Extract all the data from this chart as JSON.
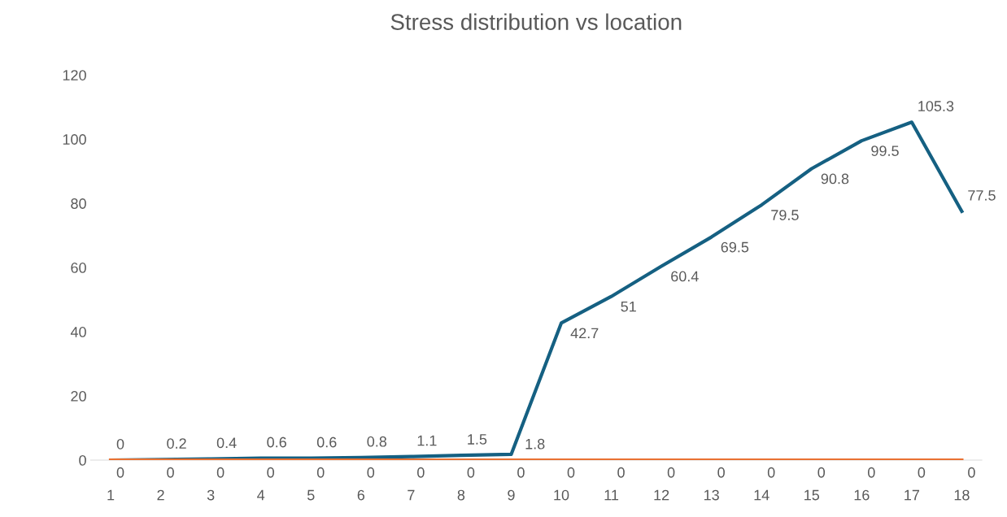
{
  "chart_data": {
    "type": "line",
    "title": "Stress distribution vs location",
    "categories": [
      "1",
      "2",
      "3",
      "4",
      "5",
      "6",
      "7",
      "8",
      "9",
      "10",
      "11",
      "12",
      "13",
      "14",
      "15",
      "16",
      "17",
      "18"
    ],
    "series": [
      {
        "color": "#156082",
        "values": [
          0,
          0.2,
          0.4,
          0.6,
          0.6,
          0.8,
          1.1,
          1.5,
          1.8,
          42.7,
          51,
          60.4,
          69.5,
          79.5,
          90.8,
          99.5,
          105.3,
          77.5
        ]
      },
      {
        "color": "#e97132",
        "values": [
          0,
          0,
          0,
          0,
          0,
          0,
          0,
          0,
          0,
          0,
          0,
          0,
          0,
          0,
          0,
          0,
          0,
          0
        ]
      }
    ],
    "ylim": [
      0,
      120
    ],
    "yticks": [
      0,
      20,
      40,
      60,
      80,
      100,
      120
    ],
    "grid": false,
    "legend": false,
    "marker": "none",
    "line_style": "solid",
    "data_labels": true
  }
}
